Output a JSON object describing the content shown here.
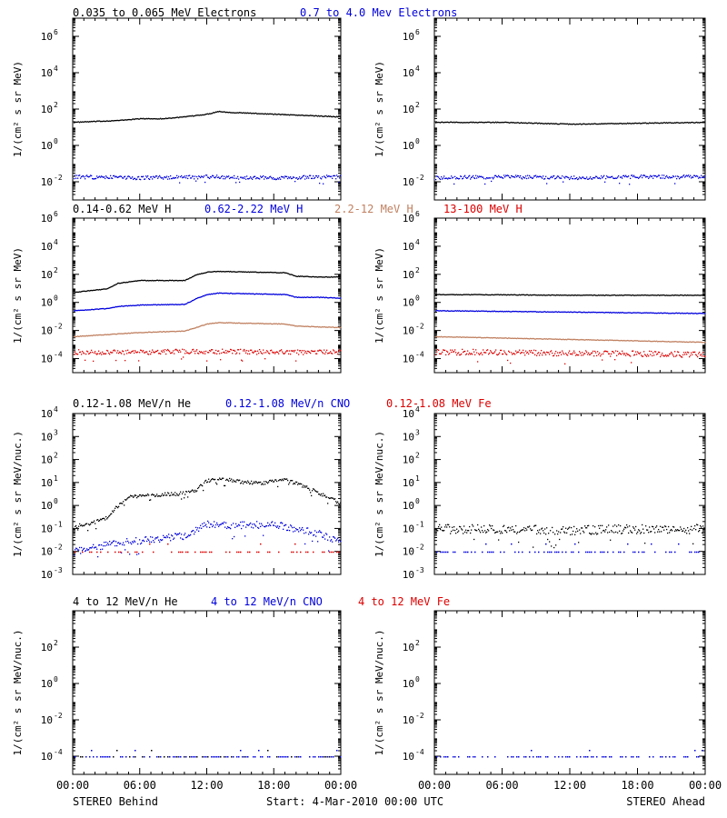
{
  "colors": {
    "black": "#000000",
    "blue": "#0000dd",
    "tan": "#c08060",
    "red": "#dd0000"
  },
  "legends": {
    "electrons": [
      {
        "text": "0.035 to 0.065 MeV Electrons",
        "color": "#000000"
      },
      {
        "text": "0.7 to 4.0 Mev Electrons",
        "color": "#0000dd"
      }
    ],
    "protons": [
      {
        "text": "0.14-0.62 MeV H",
        "color": "#000000"
      },
      {
        "text": "0.62-2.22 MeV H",
        "color": "#0000dd"
      },
      {
        "text": "2.2-12 MeV H",
        "color": "#c08060"
      },
      {
        "text": "13-100 MeV H",
        "color": "#dd0000"
      }
    ],
    "heavy_low": [
      {
        "text": "0.12-1.08 MeV/n He",
        "color": "#000000"
      },
      {
        "text": "0.12-1.08 MeV/n CNO",
        "color": "#0000dd"
      },
      {
        "text": "0.12-1.08 MeV Fe",
        "color": "#dd0000"
      }
    ],
    "heavy_high": [
      {
        "text": "4 to 12 MeV/n He",
        "color": "#000000"
      },
      {
        "text": "4 to 12 MeV/n CNO",
        "color": "#0000dd"
      },
      {
        "text": "4 to 12 MeV Fe",
        "color": "#dd0000"
      }
    ]
  },
  "ylabels": {
    "flux": "1/(cm² s sr MeV)",
    "flux_nuc": "1/(cm² s sr MeV/nuc.)"
  },
  "xticks": [
    "00:00",
    "06:00",
    "12:00",
    "18:00",
    "00:00"
  ],
  "footer": {
    "left": "STEREO Behind",
    "center": "Start:  4-Mar-2010 00:00 UTC",
    "right": "STEREO Ahead"
  },
  "chart_data": [
    {
      "type": "scatter",
      "row": 0,
      "spacecraft": "STEREO Behind",
      "log_y": true,
      "ylim_exp": [
        -3,
        7
      ],
      "ytick_exps": [
        -2,
        0,
        2,
        4,
        6
      ],
      "xlim_hours": [
        0,
        24
      ],
      "series": [
        {
          "name": "0.035 to 0.065 MeV Electrons",
          "color": "#000000",
          "x": [
            0,
            2,
            4,
            6,
            8,
            10,
            12,
            13,
            14,
            16,
            18,
            20,
            22,
            24
          ],
          "log_y": [
            1.3,
            1.35,
            1.4,
            1.5,
            1.5,
            1.6,
            1.75,
            1.9,
            1.85,
            1.8,
            1.75,
            1.7,
            1.65,
            1.6
          ]
        },
        {
          "name": "0.7 to 4.0 Mev Electrons",
          "color": "#0000dd",
          "scatter": 0.2,
          "x": [
            0,
            6,
            12,
            18,
            24
          ],
          "log_y": [
            -1.7,
            -1.75,
            -1.7,
            -1.75,
            -1.7
          ]
        }
      ]
    },
    {
      "type": "scatter",
      "row": 0,
      "spacecraft": "STEREO Ahead",
      "log_y": true,
      "ylim_exp": [
        -3,
        7
      ],
      "ytick_exps": [
        -2,
        0,
        2,
        4,
        6
      ],
      "xlim_hours": [
        0,
        24
      ],
      "series": [
        {
          "name": "0.035 to 0.065 MeV Electrons",
          "color": "#000000",
          "x": [
            0,
            6,
            12,
            18,
            24
          ],
          "log_y": [
            1.3,
            1.3,
            1.2,
            1.25,
            1.3
          ]
        },
        {
          "name": "0.7 to 4.0 Mev Electrons",
          "color": "#0000dd",
          "scatter": 0.2,
          "x": [
            0,
            6,
            12,
            18,
            24
          ],
          "log_y": [
            -1.75,
            -1.7,
            -1.75,
            -1.7,
            -1.7
          ]
        }
      ]
    },
    {
      "type": "scatter",
      "row": 1,
      "spacecraft": "STEREO Behind",
      "log_y": true,
      "ylim_exp": [
        -5,
        6
      ],
      "ytick_exps": [
        -4,
        -2,
        0,
        2,
        4,
        6
      ],
      "xlim_hours": [
        0,
        24
      ],
      "series": [
        {
          "name": "0.14-0.62 MeV H",
          "color": "#000000",
          "x": [
            0,
            3,
            4,
            6,
            7,
            10,
            11,
            12,
            13,
            16,
            19,
            20,
            22,
            24
          ],
          "log_y": [
            0.75,
            1.0,
            1.4,
            1.6,
            1.6,
            1.6,
            2.0,
            2.2,
            2.25,
            2.2,
            2.15,
            1.9,
            1.85,
            1.85
          ]
        },
        {
          "name": "0.62-2.22 MeV H",
          "color": "#0000dd",
          "x": [
            0,
            3,
            4,
            6,
            10,
            11,
            12,
            13,
            16,
            19,
            20,
            22,
            24
          ],
          "log_y": [
            -0.55,
            -0.4,
            -0.25,
            -0.15,
            -0.1,
            0.3,
            0.6,
            0.7,
            0.65,
            0.6,
            0.4,
            0.4,
            0.35
          ]
        },
        {
          "name": "2.2-12 MeV H",
          "color": "#c08060",
          "x": [
            0,
            4,
            6,
            10,
            11,
            12,
            13,
            16,
            19,
            20,
            22,
            24
          ],
          "log_y": [
            -2.4,
            -2.2,
            -2.1,
            -2.0,
            -1.75,
            -1.5,
            -1.4,
            -1.45,
            -1.5,
            -1.65,
            -1.7,
            -1.75
          ]
        },
        {
          "name": "13-100 MeV H",
          "color": "#dd0000",
          "scatter": 0.35,
          "x": [
            0,
            6,
            12,
            18,
            24
          ],
          "log_y": [
            -3.5,
            -3.5,
            -3.45,
            -3.5,
            -3.5
          ]
        }
      ]
    },
    {
      "type": "scatter",
      "row": 1,
      "spacecraft": "STEREO Ahead",
      "log_y": true,
      "ylim_exp": [
        -5,
        6
      ],
      "ytick_exps": [
        -4,
        -2,
        0,
        2,
        4,
        6
      ],
      "xlim_hours": [
        0,
        24
      ],
      "series": [
        {
          "name": "0.14-0.62 MeV H",
          "color": "#000000",
          "x": [
            0,
            6,
            12,
            18,
            24
          ],
          "log_y": [
            0.6,
            0.58,
            0.55,
            0.55,
            0.55
          ]
        },
        {
          "name": "0.62-2.22 MeV H",
          "color": "#0000dd",
          "x": [
            0,
            6,
            12,
            18,
            24
          ],
          "log_y": [
            -0.55,
            -0.6,
            -0.65,
            -0.7,
            -0.75
          ]
        },
        {
          "name": "2.2-12 MeV H",
          "color": "#c08060",
          "x": [
            0,
            6,
            12,
            18,
            24
          ],
          "log_y": [
            -2.4,
            -2.5,
            -2.6,
            -2.7,
            -2.8
          ]
        },
        {
          "name": "13-100 MeV H",
          "color": "#dd0000",
          "scatter": 0.4,
          "x": [
            0,
            6,
            12,
            18,
            24
          ],
          "log_y": [
            -3.5,
            -3.5,
            -3.6,
            -3.6,
            -3.7
          ]
        }
      ]
    },
    {
      "type": "scatter",
      "row": 2,
      "spacecraft": "STEREO Behind",
      "log_y": true,
      "ylim_exp": [
        -3,
        4
      ],
      "ytick_exps": [
        -3,
        -2,
        -1,
        0,
        1,
        2,
        3,
        4
      ],
      "xlim_hours": [
        0,
        24
      ],
      "series": [
        {
          "name": "0.12-1.08 MeV/n He",
          "color": "#000000",
          "scatter": 0.15,
          "x": [
            0,
            2,
            3,
            4,
            5,
            8,
            10,
            11,
            12,
            13,
            15,
            17,
            19,
            21,
            22,
            23,
            24
          ],
          "log_y": [
            -0.9,
            -0.7,
            -0.5,
            0.0,
            0.4,
            0.5,
            0.55,
            0.7,
            1.1,
            1.2,
            1.05,
            1.0,
            1.15,
            0.8,
            0.55,
            0.35,
            0.1
          ]
        },
        {
          "name": "0.12-1.08 MeV/n CNO",
          "color": "#0000dd",
          "scatter": 0.3,
          "x": [
            0,
            4,
            6,
            10,
            12,
            14,
            18,
            20,
            22,
            24
          ],
          "log_y": [
            -2.0,
            -1.6,
            -1.5,
            -1.3,
            -0.8,
            -0.85,
            -0.8,
            -1.0,
            -1.2,
            -1.6
          ]
        },
        {
          "name": "0.12-1.08 MeV Fe",
          "color": "#dd0000",
          "sparse": true,
          "x": [
            0,
            24
          ],
          "log_y": [
            -2.0,
            -2.0
          ]
        }
      ]
    },
    {
      "type": "scatter",
      "row": 2,
      "spacecraft": "STEREO Ahead",
      "log_y": true,
      "ylim_exp": [
        -3,
        4
      ],
      "ytick_exps": [
        -3,
        -2,
        -1,
        0,
        1,
        2,
        3,
        4
      ],
      "xlim_hours": [
        0,
        24
      ],
      "series": [
        {
          "name": "0.12-1.08 MeV/n He",
          "color": "#000000",
          "scatter": 0.4,
          "x": [
            0,
            6,
            12,
            18,
            24
          ],
          "log_y": [
            -1.0,
            -1.0,
            -1.05,
            -1.0,
            -1.0
          ]
        },
        {
          "name": "0.12-1.08 MeV/n CNO",
          "color": "#0000dd",
          "sparse": true,
          "x": [
            0,
            24
          ],
          "log_y": [
            -2.0,
            -2.0
          ]
        }
      ]
    },
    {
      "type": "scatter",
      "row": 3,
      "spacecraft": "STEREO Behind",
      "log_y": true,
      "ylim_exp": [
        -5,
        4
      ],
      "ytick_exps": [
        -4,
        -2,
        0,
        2
      ],
      "xlim_hours": [
        0,
        24
      ],
      "series": [
        {
          "name": "4 to 12 MeV/n He",
          "color": "#000000",
          "sparse": true,
          "x": [
            0,
            24
          ],
          "log_y": [
            -4.0,
            -4.0
          ]
        },
        {
          "name": "4 to 12 MeV/n CNO",
          "color": "#0000dd",
          "sparse": true,
          "x": [
            0,
            24
          ],
          "log_y": [
            -4.0,
            -4.0
          ]
        }
      ]
    },
    {
      "type": "scatter",
      "row": 3,
      "spacecraft": "STEREO Ahead",
      "log_y": true,
      "ylim_exp": [
        -5,
        4
      ],
      "ytick_exps": [
        -4,
        -2,
        0,
        2
      ],
      "xlim_hours": [
        0,
        24
      ],
      "series": [
        {
          "name": "4 to 12 MeV/n CNO",
          "color": "#0000dd",
          "sparse": true,
          "x": [
            0,
            24
          ],
          "log_y": [
            -4.0,
            -4.0
          ]
        }
      ]
    }
  ]
}
